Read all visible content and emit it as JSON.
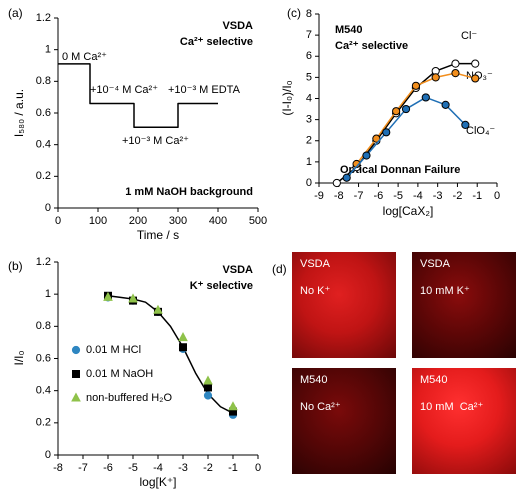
{
  "chart_data": [
    {
      "type": "line",
      "panel_label": "(a)",
      "y_label": "I₅₈₀ / a.u.",
      "x_label": "Time / s",
      "annotations": [
        "VSDA",
        "Ca²⁺ selective",
        "0 M Ca²⁺",
        "+10⁻⁴ M Ca²⁺",
        "+10⁻³ M EDTA",
        "+10⁻³ M Ca²⁺",
        "1 mM NaOH background"
      ],
      "xlim": [
        0,
        500
      ],
      "xticks": [
        0,
        100,
        200,
        300,
        400,
        500
      ],
      "ylim": [
        0,
        1.2
      ],
      "yticks": [
        0,
        0.2,
        0.4,
        0.6,
        0.8,
        1,
        1.2
      ],
      "series": [
        {
          "color": "#000000",
          "x": [
            0,
            80,
            80,
            190,
            190,
            300,
            300,
            400
          ],
          "values": [
            0.91,
            0.91,
            0.66,
            0.66,
            0.51,
            0.51,
            0.66,
            0.66
          ]
        }
      ]
    },
    {
      "type": "scatter",
      "panel_label": "(b)",
      "y_label": "I/I₀",
      "x_label": "log[K⁺]",
      "annotations": [
        "VSDA",
        "K⁺ selective"
      ],
      "xlim": [
        -8,
        0
      ],
      "xticks": [
        -8,
        -7,
        -6,
        -5,
        -4,
        -3,
        -2,
        -1,
        0
      ],
      "ylim": [
        0,
        1.2
      ],
      "yticks": [
        0,
        0.2,
        0.4,
        0.6,
        0.8,
        1,
        1.2
      ],
      "fit": {
        "color": "#000000",
        "x": [
          -6,
          -5.5,
          -5,
          -4.5,
          -4,
          -3.5,
          -3,
          -2.5,
          -2,
          -1.5,
          -1
        ],
        "values": [
          0.99,
          0.98,
          0.97,
          0.95,
          0.89,
          0.8,
          0.67,
          0.51,
          0.38,
          0.3,
          0.26
        ]
      },
      "series": [
        {
          "name": "0.01 M HCl",
          "color": "#2e86c1",
          "marker": "circle",
          "x": [
            -6,
            -5,
            -4,
            -3,
            -2,
            -1
          ],
          "values": [
            0.98,
            0.96,
            0.89,
            0.66,
            0.37,
            0.25
          ]
        },
        {
          "name": "0.01 M NaOH",
          "color": "#000000",
          "marker": "square",
          "x": [
            -6,
            -5,
            -4,
            -3,
            -2,
            -1
          ],
          "values": [
            0.99,
            0.96,
            0.89,
            0.67,
            0.42,
            0.27
          ]
        },
        {
          "name": "non-buffered H₂O",
          "color": "#8fc24a",
          "marker": "triangle",
          "x": [
            -6,
            -5,
            -4,
            -3,
            -2,
            -1
          ],
          "values": [
            0.98,
            0.97,
            0.9,
            0.73,
            0.46,
            0.3
          ]
        }
      ]
    },
    {
      "type": "line",
      "panel_label": "(c)",
      "y_label": "(I-I₀)/I₀",
      "x_label": "log[CaX₂]",
      "annotations": [
        "M540",
        "Ca²⁺ selective",
        "Cl⁻",
        "NO₃⁻",
        "ClO₄⁻",
        "Optical Donnan Failure"
      ],
      "xlim": [
        -9,
        0
      ],
      "xticks": [
        -9,
        -8,
        -7,
        -6,
        -5,
        -4,
        -3,
        -2,
        -1,
        0
      ],
      "ylim": [
        0,
        8
      ],
      "yticks": [
        0,
        1,
        2,
        3,
        4,
        5,
        6,
        7,
        8
      ],
      "series": [
        {
          "color": "#000000",
          "fill": "#ffffff",
          "x": [
            -8.1,
            -7.1,
            -6.1,
            -5.1,
            -4.1,
            -3.1,
            -2.1,
            -1.1
          ],
          "values": [
            0,
            0.75,
            2.0,
            3.3,
            4.5,
            5.3,
            5.65,
            5.65
          ]
        },
        {
          "color": "#f28e1c",
          "fill": "#f28e1c",
          "x": [
            -7.1,
            -6.1,
            -5.1,
            -4.1,
            -3.1,
            -2.1,
            -1.1
          ],
          "values": [
            0.9,
            2.1,
            3.4,
            4.6,
            5.0,
            5.2,
            4.95
          ]
        },
        {
          "color": "#1f6fb5",
          "fill": "#1f6fb5",
          "x": [
            -7.6,
            -6.6,
            -5.6,
            -4.6,
            -3.6,
            -2.6,
            -1.6
          ],
          "values": [
            0.25,
            1.3,
            2.4,
            3.5,
            4.05,
            3.7,
            2.75
          ]
        }
      ]
    }
  ],
  "images": {
    "panel_label": "(d)",
    "tiles": [
      {
        "dye": "VSDA",
        "condition": "No K⁺"
      },
      {
        "dye": "VSDA",
        "condition": "10 mM K⁺"
      },
      {
        "dye": "M540",
        "condition": "No Ca²⁺"
      },
      {
        "dye": "M540",
        "condition": "10 mM  Ca²⁺"
      }
    ]
  }
}
